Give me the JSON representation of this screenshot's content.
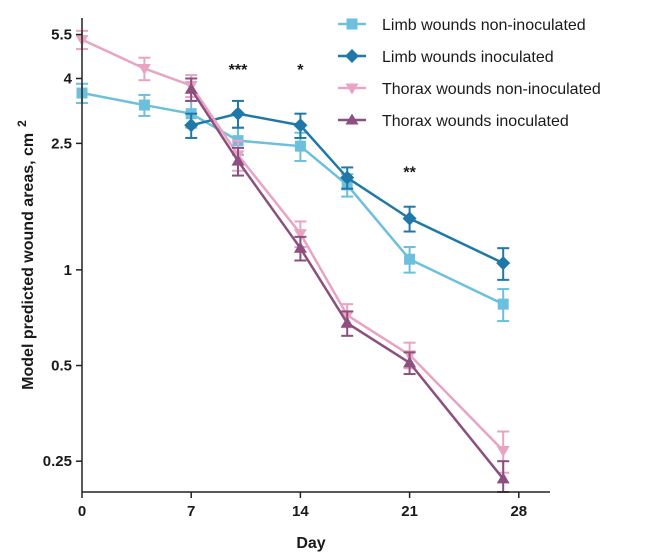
{
  "chart_data": {
    "type": "line",
    "xlabel": "Day",
    "ylabel": "Model predicted wound areas, cm",
    "ylabel_superscript": "2",
    "y_scale": "log",
    "xlim": [
      0,
      30
    ],
    "ylim": [
      0.2,
      6.2
    ],
    "xticks": [
      0,
      7,
      14,
      21,
      28
    ],
    "yticks": [
      0.25,
      0.5,
      1,
      2.5,
      4,
      5.5
    ],
    "ytick_labels": [
      "0.25",
      "0.5",
      "1",
      "2.5",
      "4",
      "5.5"
    ],
    "grid": false,
    "legend_position": "top-right",
    "series": [
      {
        "name": "Limb wounds non-inoculated",
        "color": "#6cc0dd",
        "marker": "square",
        "x": [
          0,
          4,
          7,
          10,
          14,
          17,
          21,
          27
        ],
        "y": [
          3.6,
          3.3,
          3.1,
          2.55,
          2.45,
          1.85,
          1.08,
          0.78
        ],
        "err": [
          0.25,
          0.25,
          0.3,
          0.25,
          0.25,
          0.15,
          0.1,
          0.09
        ]
      },
      {
        "name": "Limb wounds inoculated",
        "color": "#1f78a8",
        "marker": "diamond",
        "x": [
          7,
          10,
          14,
          17,
          21,
          27
        ],
        "y": [
          2.85,
          3.1,
          2.85,
          1.95,
          1.45,
          1.05
        ],
        "err": [
          0.25,
          0.3,
          0.25,
          0.15,
          0.13,
          0.12
        ]
      },
      {
        "name": "Thorax wounds non-inoculated",
        "color": "#e9a3c3",
        "marker": "triangle-down",
        "x": [
          0,
          4,
          7,
          10,
          14,
          17,
          21,
          27
        ],
        "y": [
          5.3,
          4.3,
          3.8,
          2.3,
          1.3,
          0.72,
          0.54,
          0.27
        ],
        "err": [
          0.35,
          0.35,
          0.3,
          0.25,
          0.12,
          0.06,
          0.05,
          0.04
        ]
      },
      {
        "name": "Thorax wounds inoculated",
        "color": "#8c4f7f",
        "marker": "triangle-up",
        "x": [
          7,
          10,
          14,
          17,
          21,
          27
        ],
        "y": [
          3.7,
          2.2,
          1.17,
          0.68,
          0.51,
          0.22
        ],
        "err": [
          0.3,
          0.22,
          0.1,
          0.06,
          0.04,
          0.03
        ]
      }
    ],
    "annotations": [
      {
        "text": "***",
        "x": 10,
        "y": 4.1
      },
      {
        "text": "*",
        "x": 14,
        "y": 4.1
      },
      {
        "text": "**",
        "x": 21,
        "y": 1.95
      }
    ]
  }
}
